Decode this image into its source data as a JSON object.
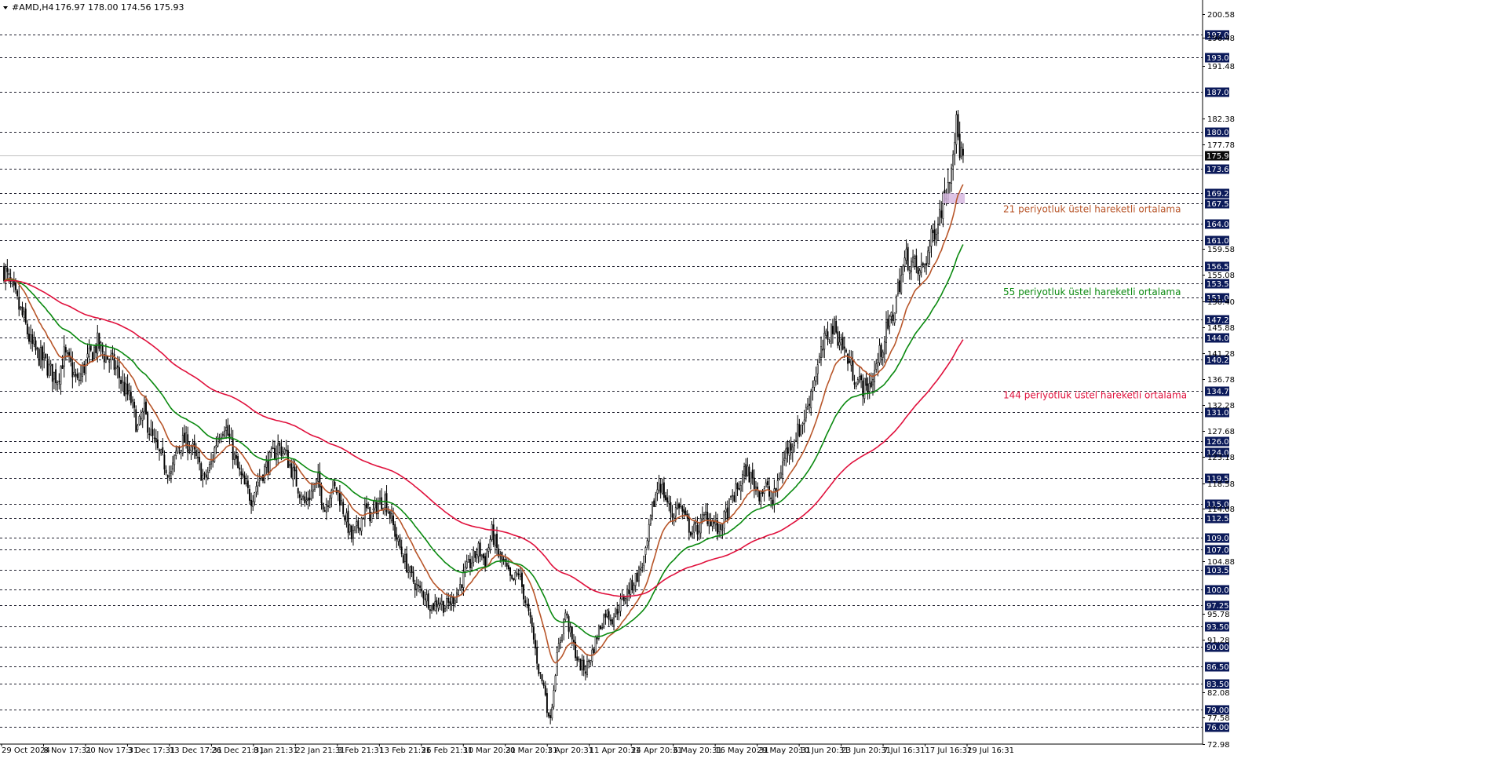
{
  "header": {
    "symbol": "#AMD,H4",
    "ohlc": "176.97 178.00 174.56 175.93",
    "menu_icon": "triangle-down-icon"
  },
  "colors": {
    "background": "#ffffff",
    "grid": "#1f1f2e",
    "candle": "#000000",
    "ema21": "#b8562a",
    "ema55": "#0b8a10",
    "ema144": "#e0103c",
    "box_label_bg": "#0b1a5a",
    "current_price_bg": "#0b0b0b",
    "zone": "#d7b8e0"
  },
  "chart_data": {
    "type": "candlestick",
    "title": "#AMD,H4",
    "ylim": [
      72.98,
      202.5
    ],
    "price_axis_plain_ticks": [
      "200.58",
      "196.48",
      "191.48",
      "182.38",
      "177.78",
      "159.58",
      "155.08",
      "150.40",
      "145.88",
      "141.28",
      "136.78",
      "132.28",
      "127.68",
      "123.18",
      "118.58",
      "114.08",
      "104.88",
      "95.78",
      "91.28",
      "82.08",
      "77.58",
      "72.98"
    ],
    "level_lines": [
      "197.00",
      "193.00",
      "187.00",
      "180.00",
      "173.60",
      "169.25",
      "167.50",
      "164.00",
      "161.00",
      "156.50",
      "153.50",
      "151.00",
      "147.25",
      "144.00",
      "140.25",
      "134.75",
      "131.00",
      "126.00",
      "124.00",
      "119.50",
      "115.00",
      "112.50",
      "109.00",
      "107.00",
      "103.50",
      "100.00",
      "97.25",
      "93.50",
      "90.00",
      "86.50",
      "83.50",
      "79.00",
      "76.00"
    ],
    "current_price": "175.93",
    "x_tick_labels": [
      "29 Oct 2024",
      "8 Nov 17:31",
      "20 Nov 17:31",
      "3 Dec 17:31",
      "13 Dec 17:31",
      "26 Dec 21:31",
      "8 Jan 21:31",
      "22 Jan 21:31",
      "3 Feb 21:31",
      "13 Feb 21:31",
      "26 Feb 21:31",
      "10 Mar 20:31",
      "20 Mar 20:31",
      "1 Apr 20:31",
      "11 Apr 20:31",
      "24 Apr 20:31",
      "6 May 20:31",
      "16 May 20:31",
      "29 May 20:31",
      "10 Jun 20:31",
      "23 Jun 20:31",
      "7 Jul 16:31",
      "17 Jul 16:31",
      "29 Jul 16:31"
    ],
    "anchors": [
      [
        0,
        156
      ],
      [
        4,
        153
      ],
      [
        8,
        150
      ],
      [
        12,
        147
      ],
      [
        16,
        143
      ],
      [
        20,
        141
      ],
      [
        24,
        140
      ],
      [
        28,
        138
      ],
      [
        32,
        137
      ],
      [
        36,
        141
      ],
      [
        40,
        139
      ],
      [
        44,
        136
      ],
      [
        48,
        139
      ],
      [
        52,
        141
      ],
      [
        56,
        143
      ],
      [
        60,
        141
      ],
      [
        64,
        140
      ],
      [
        68,
        138
      ],
      [
        72,
        135
      ],
      [
        76,
        133
      ],
      [
        80,
        128
      ],
      [
        84,
        131
      ],
      [
        88,
        127
      ],
      [
        92,
        124
      ],
      [
        96,
        122
      ],
      [
        100,
        120
      ],
      [
        104,
        125
      ],
      [
        108,
        126
      ],
      [
        112,
        125
      ],
      [
        116,
        122
      ],
      [
        120,
        119
      ],
      [
        124,
        122
      ],
      [
        128,
        127
      ],
      [
        132,
        129
      ],
      [
        136,
        125
      ],
      [
        140,
        121
      ],
      [
        144,
        118
      ],
      [
        148,
        116
      ],
      [
        152,
        119
      ],
      [
        156,
        121
      ],
      [
        160,
        123
      ],
      [
        164,
        125
      ],
      [
        168,
        124
      ],
      [
        172,
        121
      ],
      [
        176,
        118
      ],
      [
        180,
        115
      ],
      [
        184,
        117
      ],
      [
        188,
        119
      ],
      [
        192,
        114
      ],
      [
        196,
        118
      ],
      [
        200,
        117
      ],
      [
        204,
        113
      ],
      [
        208,
        109
      ],
      [
        212,
        111
      ],
      [
        216,
        114
      ],
      [
        220,
        113
      ],
      [
        224,
        115
      ],
      [
        228,
        116
      ],
      [
        232,
        112
      ],
      [
        236,
        108
      ],
      [
        240,
        105
      ],
      [
        244,
        102
      ],
      [
        248,
        100
      ],
      [
        252,
        99
      ],
      [
        256,
        97
      ],
      [
        260,
        98
      ],
      [
        264,
        97
      ],
      [
        268,
        98
      ],
      [
        272,
        100
      ],
      [
        276,
        103
      ],
      [
        280,
        105
      ],
      [
        284,
        107
      ],
      [
        288,
        105
      ],
      [
        292,
        110
      ],
      [
        296,
        106
      ],
      [
        300,
        104
      ],
      [
        304,
        101
      ],
      [
        308,
        103
      ],
      [
        312,
        98
      ],
      [
        316,
        93
      ],
      [
        320,
        86
      ],
      [
        324,
        82
      ],
      [
        326,
        77
      ],
      [
        328,
        80
      ],
      [
        330,
        86
      ],
      [
        332,
        90
      ],
      [
        336,
        96
      ],
      [
        340,
        91
      ],
      [
        344,
        87
      ],
      [
        348,
        86
      ],
      [
        352,
        89
      ],
      [
        356,
        93
      ],
      [
        360,
        96
      ],
      [
        364,
        95
      ],
      [
        368,
        97
      ],
      [
        372,
        99
      ],
      [
        376,
        101
      ],
      [
        380,
        103
      ],
      [
        384,
        106
      ],
      [
        388,
        114
      ],
      [
        392,
        119
      ],
      [
        396,
        116
      ],
      [
        400,
        113
      ],
      [
        404,
        115
      ],
      [
        408,
        112
      ],
      [
        412,
        110
      ],
      [
        416,
        111
      ],
      [
        420,
        113
      ],
      [
        424,
        112
      ],
      [
        428,
        110
      ],
      [
        432,
        113
      ],
      [
        436,
        116
      ],
      [
        440,
        118
      ],
      [
        444,
        121
      ],
      [
        448,
        119
      ],
      [
        452,
        117
      ],
      [
        456,
        118
      ],
      [
        460,
        115
      ],
      [
        464,
        120
      ],
      [
        468,
        124
      ],
      [
        472,
        126
      ],
      [
        476,
        128
      ],
      [
        480,
        131
      ],
      [
        484,
        136
      ],
      [
        488,
        140
      ],
      [
        492,
        144
      ],
      [
        496,
        146
      ],
      [
        500,
        144
      ],
      [
        504,
        141
      ],
      [
        508,
        138
      ],
      [
        512,
        136
      ],
      [
        516,
        135
      ],
      [
        520,
        137
      ],
      [
        524,
        141
      ],
      [
        528,
        145
      ],
      [
        532,
        148
      ],
      [
        536,
        154
      ],
      [
        540,
        158
      ],
      [
        544,
        157
      ],
      [
        548,
        155
      ],
      [
        552,
        158
      ],
      [
        556,
        162
      ],
      [
        560,
        166
      ],
      [
        563,
        169
      ],
      [
        566,
        173
      ],
      [
        568,
        178
      ],
      [
        570,
        181
      ],
      [
        572,
        177
      ],
      [
        574,
        176
      ]
    ],
    "n_bars": 575,
    "series": [
      {
        "id": "ema21",
        "period": 21
      },
      {
        "id": "ema55",
        "period": 55
      },
      {
        "id": "ema144",
        "period": 144
      }
    ],
    "annotations": [
      {
        "text": "21 periyotluk üstel hareketli ortalama",
        "color": "#b8562a",
        "y": 166.5
      },
      {
        "text": "55 periyotluk üstel hareketli ortalama",
        "color": "#0b8a10",
        "y": 152.0
      },
      {
        "text": "144 periyotluk üstel hareketli ortalama",
        "color": "#e0103c",
        "y": 134.0
      }
    ],
    "zone": {
      "y_low": 167.5,
      "y_high": 169.25,
      "x_from_bar": 562,
      "x_to_bar": 575
    }
  }
}
